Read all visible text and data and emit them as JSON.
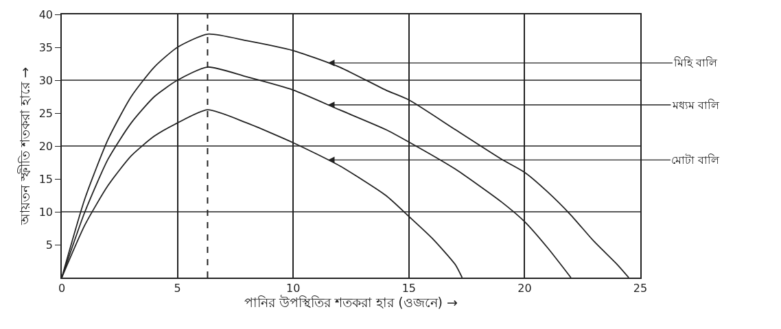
{
  "chart_data": {
    "type": "line",
    "xlabel": "পানির উপস্থিতির শতকরা হার (ওজনে) →",
    "ylabel": "আয়তন স্ফীতি শতকরা হারে →",
    "xlim": [
      0,
      25
    ],
    "xticks": [
      0,
      5,
      10,
      15,
      20,
      25
    ],
    "ylim": [
      0,
      40
    ],
    "yticks": [
      5,
      10,
      15,
      20,
      25,
      30,
      35,
      40
    ],
    "grid": "x",
    "legend": false,
    "marker": "none",
    "line_style": "solid",
    "ref_lines": [
      {
        "axis": "x",
        "value": 6.3,
        "line_style": "dashed",
        "color": "#222222"
      },
      {
        "axis": "y",
        "value": 10,
        "color": "#222222"
      },
      {
        "axis": "y",
        "value": 20,
        "color": "#222222"
      },
      {
        "axis": "y",
        "value": 30,
        "color": "#222222"
      }
    ],
    "series": [
      {
        "name": "মিহি বালি",
        "color": "#222222",
        "x": [
          0,
          1,
          2,
          3,
          4,
          5,
          6.3,
          8,
          10,
          12,
          14,
          15,
          17,
          19,
          20,
          21,
          22,
          23,
          24,
          24.5
        ],
        "values": [
          0,
          12,
          21,
          27.5,
          32,
          35,
          37,
          36,
          34.5,
          32,
          28.5,
          27,
          22.5,
          18,
          16,
          13,
          9.5,
          5.5,
          2,
          0
        ]
      },
      {
        "name": "মধ্যম বালি",
        "color": "#222222",
        "x": [
          0,
          1,
          2,
          3,
          4,
          5,
          6.3,
          8,
          10,
          12,
          14,
          15,
          17,
          19,
          20,
          21,
          22
        ],
        "values": [
          0,
          10,
          18,
          23.5,
          27.5,
          30,
          32,
          30.5,
          28.5,
          25.5,
          22.5,
          20.6,
          16.5,
          11.5,
          8.5,
          4.5,
          0
        ]
      },
      {
        "name": "মোটা বালি",
        "color": "#222222",
        "x": [
          0,
          1,
          2,
          3,
          4,
          5,
          6.3,
          8,
          10,
          12,
          14,
          15,
          16,
          17,
          17.3
        ],
        "values": [
          0,
          8,
          14,
          18.5,
          21.5,
          23.5,
          25.5,
          23.5,
          20.5,
          17,
          12.5,
          9.3,
          6,
          2,
          0
        ]
      }
    ]
  }
}
